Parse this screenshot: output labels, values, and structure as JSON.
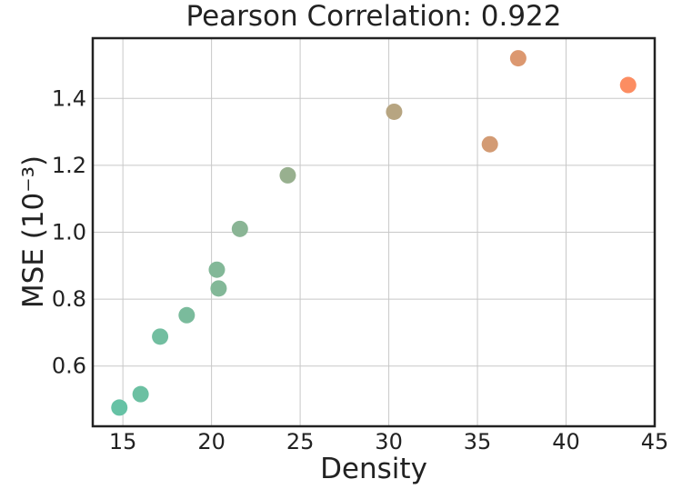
{
  "chart_data": {
    "type": "scatter",
    "title": "Pearson Correlation: 0.922",
    "xlabel": "Density",
    "ylabel": "MSE (10⁻³)",
    "xlim": [
      13.3,
      45
    ],
    "ylim": [
      0.42,
      1.58
    ],
    "xticks": [
      15,
      20,
      25,
      30,
      35,
      40,
      45
    ],
    "xtick_labels": [
      "15",
      "20",
      "25",
      "30",
      "35",
      "40",
      "45"
    ],
    "yticks": [
      0.6,
      0.8,
      1.0,
      1.2,
      1.4
    ],
    "ytick_labels": [
      "0.6",
      "0.8",
      "1.0",
      "1.2",
      "1.4"
    ],
    "grid": true,
    "color_range": [
      "#66c2a5",
      "#fc8d62"
    ],
    "points": [
      {
        "x": 14.8,
        "y": 0.476
      },
      {
        "x": 16.0,
        "y": 0.516
      },
      {
        "x": 17.1,
        "y": 0.688
      },
      {
        "x": 18.6,
        "y": 0.752
      },
      {
        "x": 20.3,
        "y": 0.888
      },
      {
        "x": 20.4,
        "y": 0.832
      },
      {
        "x": 21.6,
        "y": 1.01
      },
      {
        "x": 24.3,
        "y": 1.17
      },
      {
        "x": 30.3,
        "y": 1.36
      },
      {
        "x": 35.7,
        "y": 1.263
      },
      {
        "x": 37.3,
        "y": 1.52
      },
      {
        "x": 43.5,
        "y": 1.44
      }
    ]
  }
}
